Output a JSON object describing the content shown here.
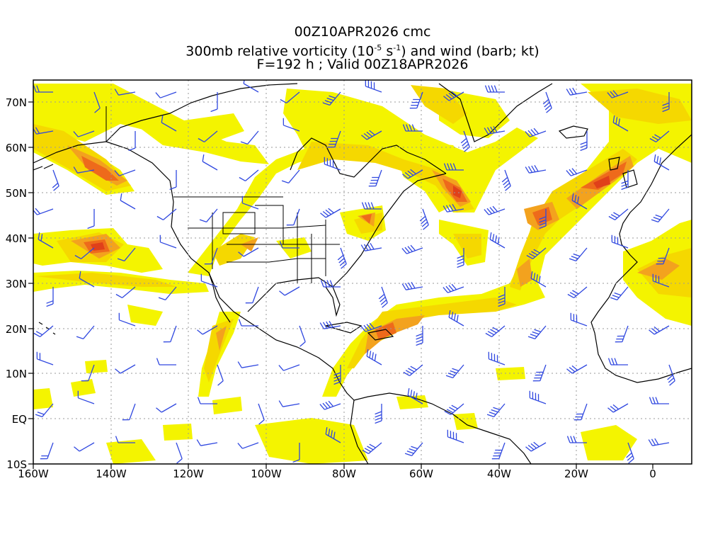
{
  "header": {
    "line1": "00Z10APR2026 cmc",
    "line2_pre": "300mb relative vorticity (10",
    "line2_exp1": "-5",
    "line2_mid": " s",
    "line2_exp2": "-1",
    "line2_post": ") and wind (barb; kt)",
    "line3": "F=192 h ; Valid 00Z18APR2026"
  },
  "axes": {
    "lat_labels": [
      "70N",
      "60N",
      "50N",
      "40N",
      "30N",
      "20N",
      "10N",
      "EQ",
      "10S"
    ],
    "lon_labels": [
      "160W",
      "140W",
      "120W",
      "100W",
      "80W",
      "60W",
      "40W",
      "20W",
      "0"
    ],
    "lon_range": [
      -160,
      10
    ],
    "lat_range": [
      -10,
      75
    ]
  },
  "colors": {
    "weak": "#f4f400",
    "light": "#f5d800",
    "moderate": "#f3a21e",
    "strong": "#ee6a1b",
    "max": "#e0401a",
    "barb": "#3048e0",
    "grid": "#9a9a9a"
  }
}
